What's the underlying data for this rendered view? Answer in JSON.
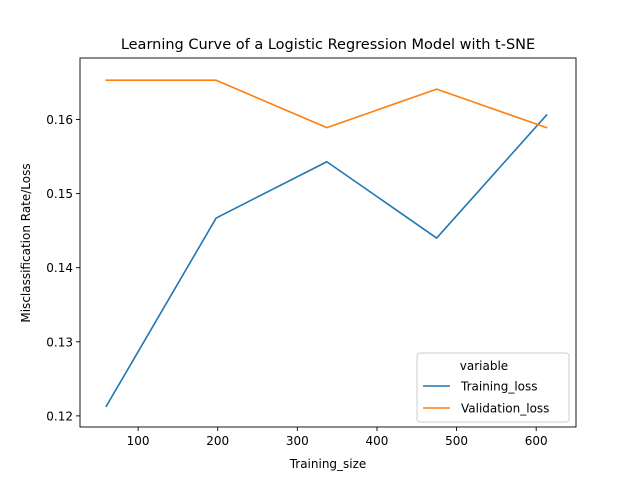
{
  "chart_data": {
    "type": "line",
    "title": "Learning Curve of a Logistic Regression Model with t-SNE",
    "xlabel": "Training_size",
    "ylabel": "Misclassification Rate/Loss",
    "xlim": [
      27,
      650
    ],
    "ylim": [
      0.1185,
      0.1683
    ],
    "xticks": [
      100,
      200,
      300,
      400,
      500,
      600
    ],
    "yticks": [
      0.12,
      0.13,
      0.14,
      0.15,
      0.16
    ],
    "xtick_labels": [
      "100",
      "200",
      "300",
      "400",
      "500",
      "600"
    ],
    "ytick_labels": [
      "0.12",
      "0.13",
      "0.14",
      "0.15",
      "0.16"
    ],
    "grid": false,
    "legend": {
      "title": "variable",
      "placement": "lower-right"
    },
    "x": [
      60,
      198,
      337,
      475,
      613
    ],
    "series": [
      {
        "name": "Training_loss",
        "color": "#1f77b4",
        "values": [
          0.1213,
          0.1467,
          0.1543,
          0.144,
          0.1606
        ]
      },
      {
        "name": "Validation_loss",
        "color": "#ff7f0e",
        "values": [
          0.1653,
          0.1653,
          0.1589,
          0.1641,
          0.1589
        ]
      }
    ]
  }
}
